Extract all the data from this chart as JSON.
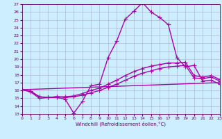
{
  "xlabel": "Windchill (Refroidissement éolien,°C)",
  "bg_color": "#cceeff",
  "line_color": "#aa00aa",
  "grid_color": "#aaaacc",
  "ylim": [
    13,
    27
  ],
  "xlim": [
    0,
    23
  ],
  "yticks": [
    13,
    14,
    15,
    16,
    17,
    18,
    19,
    20,
    21,
    22,
    23,
    24,
    25,
    26,
    27
  ],
  "xticks": [
    0,
    1,
    2,
    3,
    4,
    5,
    6,
    7,
    8,
    9,
    10,
    11,
    12,
    13,
    14,
    15,
    16,
    17,
    18,
    19,
    20,
    21,
    22,
    23
  ],
  "line1_x": [
    0,
    1,
    2,
    3,
    4,
    5,
    6,
    7,
    8,
    9,
    10,
    11,
    12,
    13,
    14,
    15,
    16,
    17,
    18,
    19,
    20,
    21,
    22,
    23
  ],
  "line1_y": [
    16.1,
    15.8,
    15.0,
    15.1,
    15.1,
    14.9,
    13.1,
    14.6,
    16.6,
    16.8,
    20.2,
    22.3,
    25.1,
    26.1,
    27.2,
    26.0,
    25.3,
    24.4,
    20.2,
    19.0,
    19.2,
    17.2,
    17.3,
    16.8
  ],
  "line2_x": [
    0,
    1,
    2,
    3,
    4,
    5,
    6,
    7,
    8,
    9,
    10,
    11,
    12,
    13,
    14,
    15,
    16,
    17,
    18,
    19,
    20,
    21,
    22,
    23
  ],
  "line2_y": [
    16.1,
    15.9,
    15.2,
    15.1,
    15.2,
    15.1,
    15.2,
    15.4,
    15.7,
    16.0,
    16.4,
    16.8,
    17.3,
    17.8,
    18.2,
    18.5,
    18.8,
    19.0,
    19.1,
    19.2,
    17.6,
    17.5,
    17.7,
    17.2
  ],
  "line3_x": [
    0,
    1,
    2,
    3,
    4,
    5,
    6,
    7,
    8,
    9,
    10,
    11,
    12,
    13,
    14,
    15,
    16,
    17,
    18,
    19,
    20,
    21,
    22,
    23
  ],
  "line3_y": [
    16.1,
    15.9,
    15.2,
    15.1,
    15.2,
    15.2,
    15.3,
    15.6,
    16.0,
    16.3,
    16.8,
    17.3,
    17.9,
    18.4,
    18.8,
    19.1,
    19.3,
    19.5,
    19.5,
    19.6,
    17.9,
    17.7,
    17.9,
    17.4
  ],
  "line4_x": [
    0,
    23
  ],
  "line4_y": [
    16.1,
    17.0
  ],
  "marker": "+",
  "marker_size": 4,
  "linewidth": 1.0
}
